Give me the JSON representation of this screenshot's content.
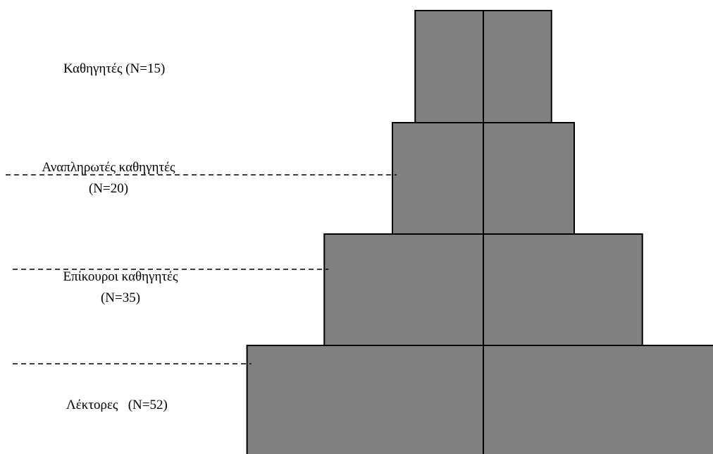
{
  "chart_data": {
    "type": "bar",
    "subtype": "population-pyramid",
    "title": "",
    "xlabel": "",
    "ylabel": "",
    "colors": {
      "bar_fill": "#808080",
      "bar_stroke": "#000000",
      "divider": "#000000",
      "dashed_line": "#000000"
    },
    "tiers": [
      {
        "name": "Καθηγητές",
        "n_label": "(N=15)",
        "n": 15
      },
      {
        "name": "Αναπληρωτές καθηγητές",
        "n_label": "(N=20)",
        "n": 20
      },
      {
        "name": "Επίκουροι καθηγητές",
        "n_label": "(N=35)",
        "n": 35
      },
      {
        "name": "Λέκτορες",
        "n_label": "(N=52)",
        "n": 52
      }
    ]
  }
}
